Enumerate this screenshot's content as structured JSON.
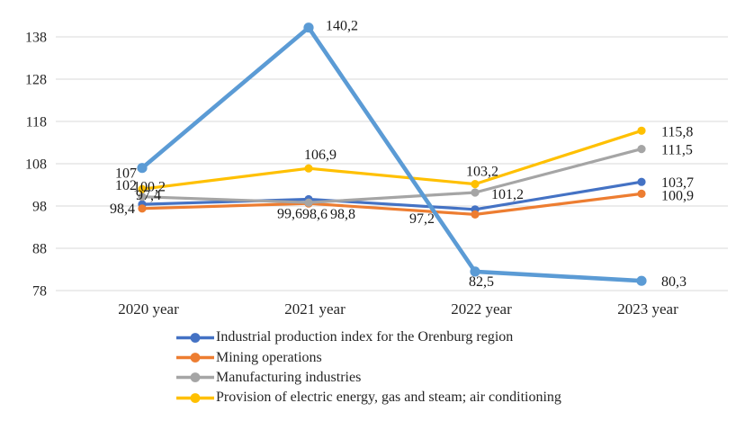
{
  "chart_data": {
    "type": "line",
    "title": "",
    "xlabel": "",
    "ylabel": "",
    "categories": [
      "2020 year",
      "2021 year",
      "2022 year",
      "2023 year"
    ],
    "y_ticks": [
      138,
      128,
      118,
      108,
      98,
      88,
      78
    ],
    "ylim": [
      78,
      142.5
    ],
    "grid": true,
    "legend_position": "bottom-left",
    "gridline_color": "#d9d9d9",
    "text_color": "#262626",
    "series": [
      {
        "name": "Industrial production index for the Orenburg region",
        "color": "#4472C4",
        "in_legend": true,
        "values": [
          98.4,
          99.6,
          97.2,
          103.7
        ],
        "labels": [
          "98,4",
          "99,6",
          "97,2",
          "103,7"
        ]
      },
      {
        "name": "Mining operations",
        "color": "#ED7D31",
        "in_legend": true,
        "values": [
          97.4,
          98.6,
          96.0,
          100.9
        ],
        "labels": [
          "97,4",
          "98,6",
          "",
          "100,9"
        ]
      },
      {
        "name": "Manufacturing industries",
        "color": "#A5A5A5",
        "in_legend": true,
        "values": [
          100.2,
          98.8,
          101.2,
          111.5
        ],
        "labels": [
          "100,2",
          "98,8",
          "101,2",
          "111,5"
        ]
      },
      {
        "name": "Provision of electric energy, gas and steam; air conditioning",
        "color": "#FFC000",
        "in_legend": true,
        "values": [
          102,
          106.9,
          103.2,
          115.8
        ],
        "labels": [
          "102",
          "106,9",
          "103,2",
          "115,8"
        ]
      },
      {
        "name": "",
        "color": "#5B9BD5",
        "in_legend": false,
        "values": [
          107,
          140.2,
          82.5,
          80.3
        ],
        "labels": [
          "107",
          "140,2",
          "82,5",
          "80,3"
        ]
      }
    ]
  }
}
